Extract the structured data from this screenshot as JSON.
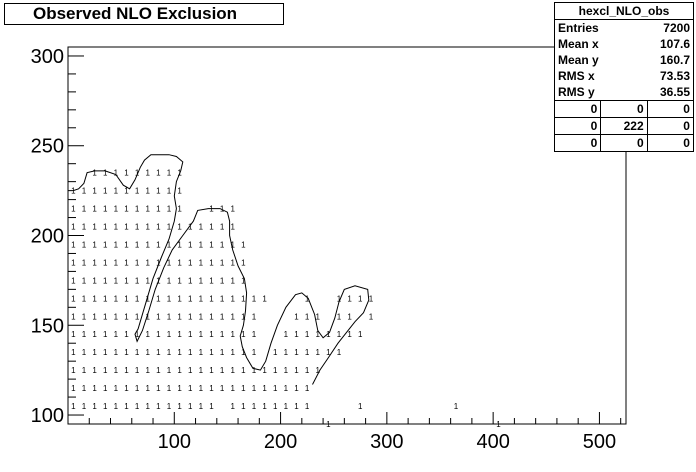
{
  "chart_data": {
    "type": "heatmap",
    "title": "Observed NLO Exclusion",
    "xlabel": "",
    "ylabel": "",
    "xlim": [
      0,
      525
    ],
    "ylim": [
      95,
      305
    ],
    "x_ticks": [
      100,
      200,
      300,
      400,
      500
    ],
    "y_ticks": [
      100,
      150,
      200,
      250,
      300
    ],
    "cell_label": "1",
    "cells": [
      [
        20,
        230
      ],
      [
        30,
        230
      ],
      [
        40,
        230
      ],
      [
        50,
        230
      ],
      [
        60,
        230
      ],
      [
        70,
        230
      ],
      [
        80,
        230
      ],
      [
        90,
        230
      ],
      [
        100,
        230
      ],
      [
        0,
        220
      ],
      [
        10,
        220
      ],
      [
        20,
        220
      ],
      [
        30,
        220
      ],
      [
        40,
        220
      ],
      [
        50,
        220
      ],
      [
        60,
        220
      ],
      [
        70,
        220
      ],
      [
        80,
        220
      ],
      [
        90,
        220
      ],
      [
        100,
        220
      ],
      [
        0,
        210
      ],
      [
        10,
        210
      ],
      [
        20,
        210
      ],
      [
        30,
        210
      ],
      [
        40,
        210
      ],
      [
        50,
        210
      ],
      [
        60,
        210
      ],
      [
        70,
        210
      ],
      [
        80,
        210
      ],
      [
        90,
        210
      ],
      [
        100,
        210
      ],
      [
        130,
        210
      ],
      [
        140,
        210
      ],
      [
        150,
        210
      ],
      [
        0,
        200
      ],
      [
        10,
        200
      ],
      [
        20,
        200
      ],
      [
        30,
        200
      ],
      [
        40,
        200
      ],
      [
        50,
        200
      ],
      [
        60,
        200
      ],
      [
        70,
        200
      ],
      [
        80,
        200
      ],
      [
        90,
        200
      ],
      [
        100,
        200
      ],
      [
        110,
        200
      ],
      [
        120,
        200
      ],
      [
        130,
        200
      ],
      [
        140,
        200
      ],
      [
        150,
        200
      ],
      [
        0,
        190
      ],
      [
        10,
        190
      ],
      [
        20,
        190
      ],
      [
        30,
        190
      ],
      [
        40,
        190
      ],
      [
        50,
        190
      ],
      [
        60,
        190
      ],
      [
        70,
        190
      ],
      [
        80,
        190
      ],
      [
        90,
        190
      ],
      [
        100,
        190
      ],
      [
        110,
        190
      ],
      [
        120,
        190
      ],
      [
        130,
        190
      ],
      [
        140,
        190
      ],
      [
        150,
        190
      ],
      [
        160,
        190
      ],
      [
        0,
        180
      ],
      [
        10,
        180
      ],
      [
        20,
        180
      ],
      [
        30,
        180
      ],
      [
        40,
        180
      ],
      [
        50,
        180
      ],
      [
        60,
        180
      ],
      [
        70,
        180
      ],
      [
        80,
        180
      ],
      [
        90,
        180
      ],
      [
        100,
        180
      ],
      [
        110,
        180
      ],
      [
        120,
        180
      ],
      [
        130,
        180
      ],
      [
        140,
        180
      ],
      [
        150,
        180
      ],
      [
        160,
        180
      ],
      [
        0,
        170
      ],
      [
        10,
        170
      ],
      [
        20,
        170
      ],
      [
        30,
        170
      ],
      [
        40,
        170
      ],
      [
        50,
        170
      ],
      [
        60,
        170
      ],
      [
        70,
        170
      ],
      [
        80,
        170
      ],
      [
        90,
        170
      ],
      [
        100,
        170
      ],
      [
        110,
        170
      ],
      [
        120,
        170
      ],
      [
        130,
        170
      ],
      [
        140,
        170
      ],
      [
        150,
        170
      ],
      [
        160,
        170
      ],
      [
        0,
        160
      ],
      [
        10,
        160
      ],
      [
        20,
        160
      ],
      [
        30,
        160
      ],
      [
        40,
        160
      ],
      [
        50,
        160
      ],
      [
        60,
        160
      ],
      [
        70,
        160
      ],
      [
        80,
        160
      ],
      [
        90,
        160
      ],
      [
        100,
        160
      ],
      [
        110,
        160
      ],
      [
        120,
        160
      ],
      [
        130,
        160
      ],
      [
        140,
        160
      ],
      [
        150,
        160
      ],
      [
        160,
        160
      ],
      [
        170,
        160
      ],
      [
        180,
        160
      ],
      [
        220,
        160
      ],
      [
        250,
        160
      ],
      [
        260,
        160
      ],
      [
        270,
        160
      ],
      [
        280,
        160
      ],
      [
        0,
        150
      ],
      [
        10,
        150
      ],
      [
        20,
        150
      ],
      [
        30,
        150
      ],
      [
        40,
        150
      ],
      [
        50,
        150
      ],
      [
        60,
        150
      ],
      [
        70,
        150
      ],
      [
        80,
        150
      ],
      [
        90,
        150
      ],
      [
        100,
        150
      ],
      [
        110,
        150
      ],
      [
        120,
        150
      ],
      [
        130,
        150
      ],
      [
        140,
        150
      ],
      [
        150,
        150
      ],
      [
        160,
        150
      ],
      [
        170,
        150
      ],
      [
        210,
        150
      ],
      [
        220,
        150
      ],
      [
        230,
        150
      ],
      [
        250,
        150
      ],
      [
        260,
        150
      ],
      [
        280,
        150
      ],
      [
        0,
        140
      ],
      [
        10,
        140
      ],
      [
        20,
        140
      ],
      [
        30,
        140
      ],
      [
        40,
        140
      ],
      [
        50,
        140
      ],
      [
        60,
        140
      ],
      [
        70,
        140
      ],
      [
        80,
        140
      ],
      [
        90,
        140
      ],
      [
        100,
        140
      ],
      [
        110,
        140
      ],
      [
        120,
        140
      ],
      [
        130,
        140
      ],
      [
        140,
        140
      ],
      [
        150,
        140
      ],
      [
        160,
        140
      ],
      [
        170,
        140
      ],
      [
        200,
        140
      ],
      [
        210,
        140
      ],
      [
        220,
        140
      ],
      [
        230,
        140
      ],
      [
        240,
        140
      ],
      [
        250,
        140
      ],
      [
        260,
        140
      ],
      [
        270,
        140
      ],
      [
        0,
        130
      ],
      [
        10,
        130
      ],
      [
        20,
        130
      ],
      [
        30,
        130
      ],
      [
        40,
        130
      ],
      [
        50,
        130
      ],
      [
        60,
        130
      ],
      [
        70,
        130
      ],
      [
        80,
        130
      ],
      [
        90,
        130
      ],
      [
        100,
        130
      ],
      [
        110,
        130
      ],
      [
        120,
        130
      ],
      [
        130,
        130
      ],
      [
        140,
        130
      ],
      [
        150,
        130
      ],
      [
        160,
        130
      ],
      [
        170,
        130
      ],
      [
        190,
        130
      ],
      [
        200,
        130
      ],
      [
        210,
        130
      ],
      [
        220,
        130
      ],
      [
        230,
        130
      ],
      [
        240,
        130
      ],
      [
        250,
        130
      ],
      [
        0,
        120
      ],
      [
        10,
        120
      ],
      [
        20,
        120
      ],
      [
        30,
        120
      ],
      [
        40,
        120
      ],
      [
        50,
        120
      ],
      [
        60,
        120
      ],
      [
        70,
        120
      ],
      [
        80,
        120
      ],
      [
        90,
        120
      ],
      [
        100,
        120
      ],
      [
        110,
        120
      ],
      [
        120,
        120
      ],
      [
        130,
        120
      ],
      [
        140,
        120
      ],
      [
        150,
        120
      ],
      [
        160,
        120
      ],
      [
        170,
        120
      ],
      [
        180,
        120
      ],
      [
        190,
        120
      ],
      [
        200,
        120
      ],
      [
        210,
        120
      ],
      [
        220,
        120
      ],
      [
        230,
        120
      ],
      [
        0,
        110
      ],
      [
        10,
        110
      ],
      [
        20,
        110
      ],
      [
        30,
        110
      ],
      [
        40,
        110
      ],
      [
        50,
        110
      ],
      [
        60,
        110
      ],
      [
        70,
        110
      ],
      [
        80,
        110
      ],
      [
        90,
        110
      ],
      [
        100,
        110
      ],
      [
        110,
        110
      ],
      [
        120,
        110
      ],
      [
        130,
        110
      ],
      [
        140,
        110
      ],
      [
        150,
        110
      ],
      [
        160,
        110
      ],
      [
        170,
        110
      ],
      [
        180,
        110
      ],
      [
        190,
        110
      ],
      [
        200,
        110
      ],
      [
        210,
        110
      ],
      [
        220,
        110
      ],
      [
        0,
        100
      ],
      [
        10,
        100
      ],
      [
        20,
        100
      ],
      [
        30,
        100
      ],
      [
        40,
        100
      ],
      [
        50,
        100
      ],
      [
        60,
        100
      ],
      [
        70,
        100
      ],
      [
        80,
        100
      ],
      [
        90,
        100
      ],
      [
        100,
        100
      ],
      [
        110,
        100
      ],
      [
        120,
        100
      ],
      [
        130,
        100
      ],
      [
        150,
        100
      ],
      [
        160,
        100
      ],
      [
        170,
        100
      ],
      [
        180,
        100
      ],
      [
        190,
        100
      ],
      [
        200,
        100
      ],
      [
        210,
        100
      ],
      [
        220,
        100
      ],
      [
        270,
        100
      ],
      [
        360,
        100
      ],
      [
        240,
        90
      ],
      [
        400,
        90
      ]
    ],
    "contours": [
      [
        [
          0,
          225
        ],
        [
          5,
          225
        ],
        [
          10,
          226
        ],
        [
          15,
          229
        ],
        [
          18,
          235
        ],
        [
          25,
          236
        ],
        [
          35,
          236
        ],
        [
          45,
          234
        ],
        [
          52,
          228
        ],
        [
          58,
          226
        ],
        [
          63,
          231
        ],
        [
          68,
          238
        ],
        [
          72,
          242
        ],
        [
          78,
          245
        ],
        [
          95,
          245
        ],
        [
          102,
          244
        ],
        [
          108,
          241
        ],
        [
          106,
          236
        ],
        [
          102,
          230
        ],
        [
          100,
          222
        ],
        [
          102,
          215
        ],
        [
          100,
          208
        ],
        [
          95,
          198
        ],
        [
          88,
          188
        ],
        [
          80,
          176
        ],
        [
          72,
          160
        ],
        [
          66,
          148
        ],
        [
          63,
          145
        ],
        [
          65,
          141
        ],
        [
          70,
          147
        ],
        [
          76,
          158
        ],
        [
          82,
          170
        ],
        [
          90,
          182
        ],
        [
          98,
          192
        ],
        [
          108,
          200
        ],
        [
          118,
          208
        ],
        [
          122,
          214
        ],
        [
          132,
          215
        ],
        [
          143,
          215
        ],
        [
          150,
          213
        ],
        [
          152,
          208
        ],
        [
          152,
          200
        ],
        [
          155,
          192
        ],
        [
          160,
          183
        ],
        [
          166,
          176
        ],
        [
          168,
          168
        ],
        [
          167,
          158
        ],
        [
          165,
          150
        ],
        [
          162,
          144
        ],
        [
          164,
          138
        ],
        [
          168,
          132
        ],
        [
          174,
          126
        ],
        [
          181,
          125
        ],
        [
          186,
          130
        ],
        [
          191,
          140
        ],
        [
          197,
          150
        ],
        [
          205,
          160
        ],
        [
          214,
          167
        ],
        [
          220,
          168
        ],
        [
          226,
          165
        ],
        [
          232,
          156
        ],
        [
          235,
          147
        ],
        [
          240,
          143
        ],
        [
          246,
          146
        ],
        [
          251,
          154
        ],
        [
          255,
          163
        ],
        [
          260,
          170
        ],
        [
          270,
          172
        ],
        [
          282,
          170
        ],
        [
          283,
          164
        ],
        [
          278,
          157
        ],
        [
          270,
          152
        ],
        [
          262,
          146
        ],
        [
          254,
          140
        ],
        [
          245,
          132
        ],
        [
          237,
          125
        ],
        [
          230,
          117
        ]
      ]
    ],
    "stats": {
      "name": "hexcl_NLO_obs",
      "rows": [
        {
          "label": "Entries",
          "value": "7200"
        },
        {
          "label": "Mean x",
          "value": "107.6"
        },
        {
          "label": "Mean y",
          "value": "160.7"
        },
        {
          "label": "RMS x",
          "value": "73.53"
        },
        {
          "label": "RMS y",
          "value": "36.55"
        }
      ],
      "overflow_grid": [
        [
          "0",
          "0",
          "0"
        ],
        [
          "0",
          "222",
          "0"
        ],
        [
          "0",
          "0",
          "0"
        ]
      ]
    }
  }
}
